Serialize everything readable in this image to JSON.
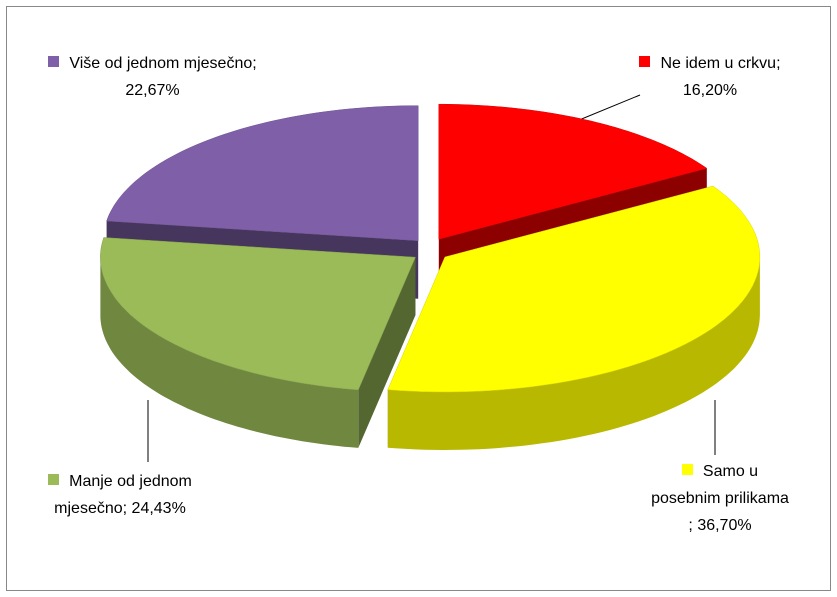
{
  "chart_data": {
    "type": "pie3d",
    "labels": [
      "Ne idem u crkvu; 16,20%",
      "Samo u posebnim prilikama ; 36,70%",
      "Manje od jednom mjesečno; 24,43%",
      "Više od jednom mjesečno; 22,67%"
    ],
    "values": [
      16.2,
      36.7,
      24.43,
      22.67
    ],
    "colors": [
      "#ff0000",
      "#ffff00",
      "#9bbb59",
      "#7f60a8"
    ]
  }
}
